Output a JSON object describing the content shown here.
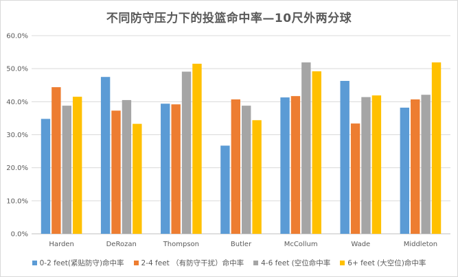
{
  "chart_data": {
    "type": "bar",
    "title": "不同防守压力下的投篮命中率—10尺外两分球",
    "categories": [
      "Harden",
      "DeRozan",
      "Thompson",
      "Butler",
      "McCollum",
      "Wade",
      "Middleton"
    ],
    "series": [
      {
        "name": "0-2 feet(紧贴防守)命中率",
        "color": "#5b9bd5",
        "values": [
          34.8,
          47.5,
          39.4,
          26.7,
          41.3,
          46.3,
          38.2
        ]
      },
      {
        "name": "2-4 feet （有防守干扰）命中率",
        "color": "#ed7d31",
        "values": [
          44.4,
          37.3,
          39.2,
          40.7,
          41.7,
          33.4,
          40.7
        ]
      },
      {
        "name": "4-6 feet (空位命中率",
        "color": "#a5a5a5",
        "values": [
          38.8,
          40.5,
          49.1,
          38.8,
          51.9,
          41.4,
          42.1
        ]
      },
      {
        "name": "6+ feet (大空位)命中率",
        "color": "#ffc000",
        "values": [
          41.5,
          33.3,
          51.5,
          34.4,
          49.2,
          41.9,
          51.9
        ]
      }
    ],
    "ylim": [
      0,
      60
    ],
    "ytick_labels": [
      "0.0%",
      "10.0%",
      "20.0%",
      "30.0%",
      "40.0%",
      "50.0%",
      "60.0%"
    ],
    "grid": true,
    "legend_position": "bottom"
  }
}
